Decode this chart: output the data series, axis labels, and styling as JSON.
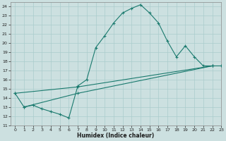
{
  "xlabel": "Humidex (Indice chaleur)",
  "bg_color": "#cce0e0",
  "grid_color": "#aacccc",
  "line_color": "#1a7a6e",
  "curve1_x": [
    0,
    1,
    2,
    3,
    4,
    5,
    6,
    7,
    8,
    9,
    10,
    11,
    12,
    13,
    14,
    15,
    16,
    17,
    18,
    19,
    20,
    21,
    22,
    23
  ],
  "curve1_y": [
    14.5,
    13.0,
    13.2,
    12.8,
    12.5,
    12.2,
    11.8,
    15.3,
    16.0,
    19.5,
    20.8,
    22.2,
    23.3,
    23.8,
    24.2,
    23.3,
    22.2,
    20.2,
    18.5,
    19.7,
    18.5,
    17.5,
    17.5,
    17.5
  ],
  "curve2_x": [
    1,
    7,
    22
  ],
  "curve2_y": [
    13.0,
    14.5,
    17.5
  ],
  "curve3_x": [
    0,
    7,
    22
  ],
  "curve3_y": [
    14.5,
    15.2,
    17.5
  ],
  "xlim": [
    -0.5,
    23
  ],
  "ylim": [
    11,
    24.5
  ],
  "yticks": [
    11,
    12,
    13,
    14,
    15,
    16,
    17,
    18,
    19,
    20,
    21,
    22,
    23,
    24
  ],
  "xticks": [
    0,
    1,
    2,
    3,
    4,
    5,
    6,
    7,
    8,
    9,
    10,
    11,
    12,
    13,
    14,
    15,
    16,
    17,
    18,
    19,
    20,
    21,
    22,
    23
  ]
}
